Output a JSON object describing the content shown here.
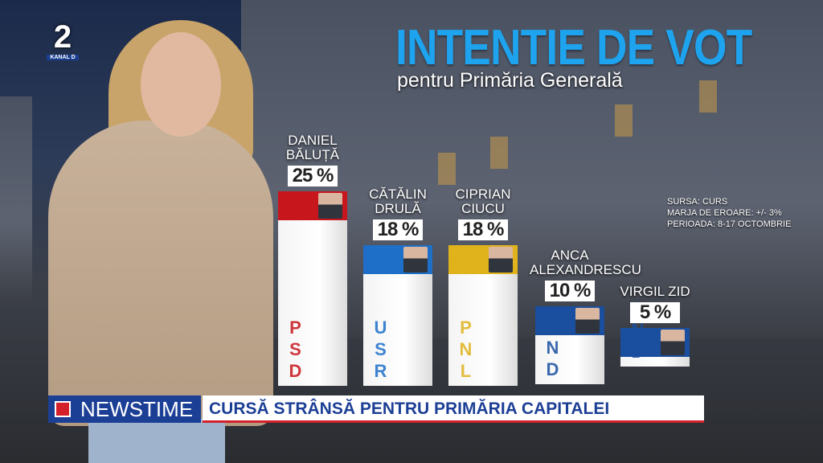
{
  "logo": {
    "number": "2",
    "channel": "KANAL D"
  },
  "chart_data": {
    "type": "bar",
    "title": "INTENTIE DE VOT",
    "subtitle": "pentru Primăria Generală",
    "categories": [
      "DANIEL BĂLUȚĂ",
      "CĂTĂLIN DRULĂ",
      "CIPRIAN CIUCU",
      "ANCA ALEXANDRESCU",
      "VIRGIL ZID"
    ],
    "values": [
      25,
      18,
      18,
      10,
      5
    ],
    "value_labels": [
      "25 %",
      "18 %",
      "18 %",
      "10 %",
      "5 %"
    ],
    "party_labels": [
      "PSD",
      "USR",
      "PNL",
      "IND",
      "IND"
    ],
    "colors": [
      "#c8161d",
      "#1e6fc8",
      "#e0b21c",
      "#1a4fa0",
      "#1a4fa0"
    ],
    "notes": [
      "SURSA: CURS",
      "MARJA DE EROARE: +/- 3%",
      "PERIOADA: 8-17 OCTOMBRIE"
    ]
  },
  "ticker": {
    "brand": "NEWSTIME",
    "headline": "CURSĂ STRÂNSĂ PENTRU PRIMĂRIA CAPITALEI"
  }
}
